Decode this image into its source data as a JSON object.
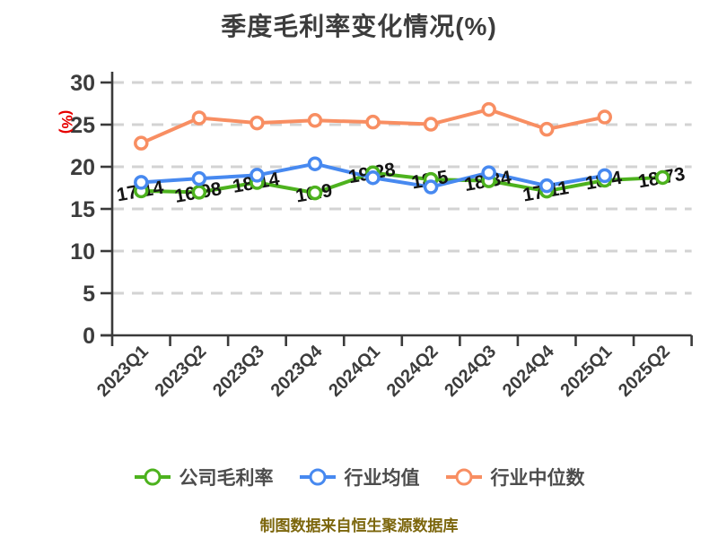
{
  "title": "季度毛利率变化情况(%)",
  "footer": "制图数据来自恒生聚源数据库",
  "chart_data": {
    "type": "line",
    "title": "季度毛利率变化情况(%)",
    "ylabel": "(%)",
    "xlabel": "",
    "ylim": [
      0,
      30
    ],
    "y_ticks": [
      0,
      5,
      10,
      15,
      20,
      25,
      30
    ],
    "grid": "horizontal-dashed",
    "legend_position": "bottom",
    "categories": [
      "2023Q1",
      "2023Q2",
      "2023Q3",
      "2023Q4",
      "2024Q1",
      "2024Q2",
      "2024Q3",
      "2024Q4",
      "2025Q1",
      "2025Q2"
    ],
    "series": [
      {
        "name": "公司毛利率",
        "color": "#4db21e",
        "values": [
          17.14,
          16.98,
          18.14,
          16.9,
          19.28,
          18.5,
          18.34,
          17.11,
          18.4,
          18.73
        ],
        "labels": [
          "17.14",
          "16.98",
          "18.14",
          "16.9",
          "19.28",
          "18.5",
          "18.34",
          "17.11",
          "18.4",
          "18.73"
        ],
        "show_labels": true
      },
      {
        "name": "行业均值",
        "color": "#4789f0",
        "values": [
          18.15,
          18.6,
          19.0,
          20.35,
          18.7,
          17.6,
          19.3,
          17.75,
          18.95
        ],
        "show_labels": false
      },
      {
        "name": "行业中位数",
        "color": "#f88e62",
        "values": [
          22.8,
          25.8,
          25.2,
          25.5,
          25.3,
          25.05,
          26.8,
          24.45,
          25.9
        ],
        "show_labels": false
      }
    ]
  },
  "colors": {
    "title_text": "#3c3c3c",
    "axis": "#3a3a3a",
    "tick_text": "#3c3c3c",
    "grid": "#d3d3d3",
    "ylabel_text": "#e60000",
    "data_label_text": "#141414",
    "legend_text": "#4c4c4c",
    "footer_text": "#7c660c",
    "background": "#ffffff",
    "marker_fill": "#ffffff"
  }
}
